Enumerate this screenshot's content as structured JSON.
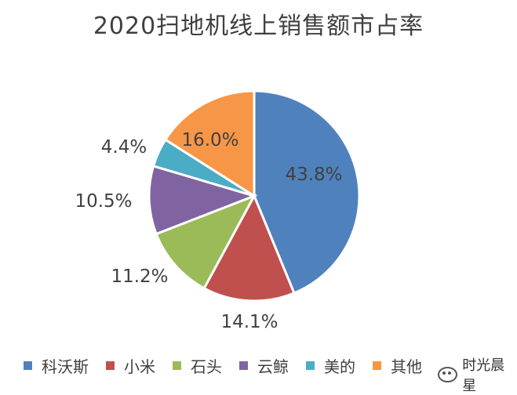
{
  "chart_data": {
    "type": "pie",
    "title": "2020扫地机线上销售额市占率",
    "slices": [
      {
        "label": "科沃斯",
        "value": 43.8,
        "display": "43.8%",
        "color": "#4F81BD"
      },
      {
        "label": "小米",
        "value": 14.1,
        "display": "14.1%",
        "color": "#C0504D"
      },
      {
        "label": "石头",
        "value": 11.2,
        "display": "11.2%",
        "color": "#9BBB59"
      },
      {
        "label": "云鲸",
        "value": 10.5,
        "display": "10.5%",
        "color": "#8064A2"
      },
      {
        "label": "美的",
        "value": 4.4,
        "display": "4.4%",
        "color": "#4BACC6"
      },
      {
        "label": "其他",
        "value": 16.0,
        "display": "16.0%",
        "color": "#F79646"
      }
    ],
    "legend_position": "bottom"
  },
  "watermark": {
    "text": "时光晨星",
    "icon": "wechat-icon"
  }
}
